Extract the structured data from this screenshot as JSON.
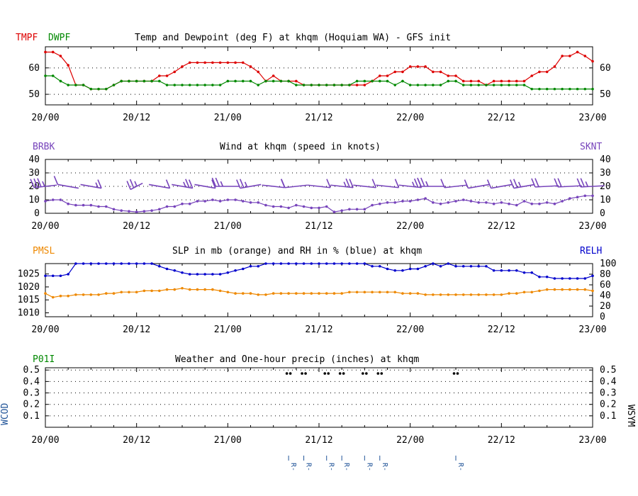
{
  "colors": {
    "tmpf": "#dd0000",
    "dwpf": "#008800",
    "wind": "#7744bb",
    "pmsl": "#ee8800",
    "relh": "#0000cc",
    "precip": "#008800",
    "wcod": "#225599",
    "axis": "#000000"
  },
  "x_labels": [
    "20/00",
    "20/12",
    "21/00",
    "21/12",
    "22/00",
    "22/12",
    "23/00"
  ],
  "chart_data": [
    {
      "type": "line",
      "name": "temp-panel",
      "title": "Temp and Dewpoint (deg F) at khqm  (Hoquiam WA) - GFS init",
      "left_labels": [
        "TMPF",
        "DWPF"
      ],
      "x_range_hours": [
        0,
        72
      ],
      "ylim": [
        46,
        68
      ],
      "yticks": [
        50,
        60
      ],
      "x_hours": [
        0,
        1,
        2,
        3,
        4,
        5,
        6,
        7,
        8,
        9,
        10,
        11,
        12,
        13,
        14,
        15,
        16,
        17,
        18,
        19,
        20,
        21,
        22,
        23,
        24,
        25,
        26,
        27,
        28,
        29,
        30,
        31,
        32,
        33,
        34,
        35,
        36,
        37,
        38,
        39,
        40,
        41,
        42,
        43,
        44,
        45,
        46,
        47,
        48,
        49,
        50,
        51,
        52,
        53,
        54,
        55,
        56,
        57,
        58,
        59,
        60,
        61,
        62,
        63,
        64,
        65,
        66,
        67,
        68,
        69,
        70,
        71,
        72
      ],
      "series": [
        {
          "name": "TMPF",
          "values": [
            66,
            66,
            64.5,
            61,
            53.5,
            53.5,
            52,
            52,
            52,
            53.5,
            55,
            55,
            55,
            55,
            55,
            57,
            57,
            58.5,
            60.5,
            62,
            62,
            62,
            62,
            62,
            62,
            62,
            62,
            60.5,
            58.5,
            55,
            57,
            55,
            55,
            55,
            53.5,
            53.5,
            53.5,
            53.5,
            53.5,
            53.5,
            53.5,
            53.5,
            53.5,
            55,
            57,
            57,
            58.5,
            58.5,
            60.5,
            60.5,
            60.5,
            58.5,
            58.5,
            57,
            57,
            55,
            55,
            55,
            53.5,
            55,
            55,
            55,
            55,
            55,
            57,
            58.5,
            58.5,
            60.5,
            64.5,
            64.5,
            66,
            64.5,
            62.5
          ]
        },
        {
          "name": "DWPF",
          "values": [
            57,
            57,
            55,
            53.5,
            53.5,
            53.5,
            52,
            52,
            52,
            53.5,
            55,
            55,
            55,
            55,
            55,
            55,
            53.5,
            53.5,
            53.5,
            53.5,
            53.5,
            53.5,
            53.5,
            53.5,
            55,
            55,
            55,
            55,
            53.5,
            55,
            55,
            55,
            55,
            53.5,
            53.5,
            53.5,
            53.5,
            53.5,
            53.5,
            53.5,
            53.5,
            55,
            55,
            55,
            55,
            55,
            53.5,
            55,
            53.5,
            53.5,
            53.5,
            53.5,
            53.5,
            55,
            55,
            53.5,
            53.5,
            53.5,
            53.5,
            53.5,
            53.5,
            53.5,
            53.5,
            53.5,
            52,
            52,
            52,
            52,
            52,
            52,
            52,
            52,
            52
          ]
        }
      ]
    },
    {
      "type": "line",
      "name": "wind-panel",
      "title": "Wind at  khqm  (speed in knots)",
      "left_label": "BRBK",
      "right_label": "SKNT",
      "x_range_hours": [
        0,
        72
      ],
      "ylim": [
        0,
        40
      ],
      "yticks": [
        0,
        10,
        20,
        30,
        40
      ],
      "x_hours": [
        0,
        1,
        2,
        3,
        4,
        5,
        6,
        7,
        8,
        9,
        10,
        11,
        12,
        13,
        14,
        15,
        16,
        17,
        18,
        19,
        20,
        21,
        22,
        23,
        24,
        25,
        26,
        27,
        28,
        29,
        30,
        31,
        32,
        33,
        34,
        35,
        36,
        37,
        38,
        39,
        40,
        41,
        42,
        43,
        44,
        45,
        46,
        47,
        48,
        49,
        50,
        51,
        52,
        53,
        54,
        55,
        56,
        57,
        58,
        59,
        60,
        61,
        62,
        63,
        64,
        65,
        66,
        67,
        68,
        69,
        70,
        71,
        72
      ],
      "series": [
        {
          "name": "SKNT",
          "values": [
            9,
            10,
            10,
            7,
            6,
            6,
            6,
            5,
            5,
            3,
            2,
            1.5,
            1,
            1.5,
            2,
            3,
            5,
            5,
            7,
            7,
            9,
            9,
            10,
            9,
            10,
            10,
            9,
            8,
            8,
            6,
            5,
            5,
            4,
            6,
            5,
            4,
            4,
            5,
            1,
            2,
            3,
            3,
            3,
            6,
            7,
            8,
            8,
            9,
            9,
            10,
            11,
            8,
            7,
            8,
            9,
            10,
            9,
            8,
            8,
            7,
            8,
            7,
            6,
            9,
            7,
            7,
            8,
            7,
            9,
            11,
            12,
            13,
            13
          ]
        }
      ],
      "barbs": [
        {
          "hour": 0,
          "dir": 290,
          "speed": 25
        },
        {
          "hour": 3,
          "dir": 240,
          "speed": 10
        },
        {
          "hour": 6,
          "dir": 60,
          "speed": 5
        },
        {
          "hour": 12,
          "dir": 330,
          "speed": 15
        },
        {
          "hour": 15,
          "dir": 60,
          "speed": 10
        },
        {
          "hour": 18,
          "dir": 60,
          "speed": 15
        },
        {
          "hour": 21,
          "dir": 60,
          "speed": 10
        },
        {
          "hour": 24,
          "dir": 270,
          "speed": 15
        },
        {
          "hour": 27,
          "dir": 300,
          "speed": 15
        },
        {
          "hour": 30,
          "dir": 70,
          "speed": 10
        },
        {
          "hour": 33,
          "dir": 290,
          "speed": 10
        },
        {
          "hour": 36,
          "dir": 70,
          "speed": 10
        },
        {
          "hour": 39,
          "dir": 70,
          "speed": 15
        },
        {
          "hour": 42,
          "dir": 70,
          "speed": 10
        },
        {
          "hour": 45,
          "dir": 70,
          "speed": 10
        },
        {
          "hour": 48,
          "dir": 70,
          "speed": 15
        },
        {
          "hour": 51,
          "dir": 270,
          "speed": 15
        },
        {
          "hour": 54,
          "dir": 290,
          "speed": 10
        },
        {
          "hour": 57,
          "dir": 300,
          "speed": 10
        },
        {
          "hour": 60,
          "dir": 300,
          "speed": 10
        },
        {
          "hour": 63,
          "dir": 300,
          "speed": 15
        },
        {
          "hour": 66,
          "dir": 280,
          "speed": 20
        },
        {
          "hour": 69,
          "dir": 280,
          "speed": 20
        },
        {
          "hour": 72,
          "dir": 280,
          "speed": 15
        }
      ]
    },
    {
      "type": "line",
      "name": "slp-panel",
      "title": "SLP in mb (orange) and RH in % (blue) at  khqm",
      "left_label": "PMSL",
      "right_label": "RELH",
      "x_range_hours": [
        0,
        72
      ],
      "ylim_left": [
        1008.5,
        1029
      ],
      "yticks_left": [
        1010,
        1015,
        1020,
        1025
      ],
      "ylim_right": [
        0,
        100
      ],
      "yticks_right": [
        0,
        20,
        40,
        60,
        80,
        100
      ],
      "x_hours": [
        0,
        1,
        2,
        3,
        4,
        5,
        6,
        7,
        8,
        9,
        10,
        11,
        12,
        13,
        14,
        15,
        16,
        17,
        18,
        19,
        20,
        21,
        22,
        23,
        24,
        25,
        26,
        27,
        28,
        29,
        30,
        31,
        32,
        33,
        34,
        35,
        36,
        37,
        38,
        39,
        40,
        41,
        42,
        43,
        44,
        45,
        46,
        47,
        48,
        49,
        50,
        51,
        52,
        53,
        54,
        55,
        56,
        57,
        58,
        59,
        60,
        61,
        62,
        63,
        64,
        65,
        66,
        67,
        68,
        69,
        70,
        71,
        72
      ],
      "series": [
        {
          "name": "PMSL",
          "axis": "left",
          "values": [
            1017.5,
            1016,
            1016.5,
            1016.5,
            1017,
            1017,
            1017,
            1017,
            1017.5,
            1017.5,
            1018,
            1018,
            1018,
            1018.5,
            1018.5,
            1018.5,
            1019,
            1019,
            1019.5,
            1019,
            1019,
            1019,
            1019,
            1018.5,
            1018,
            1017.5,
            1017.5,
            1017.5,
            1017,
            1017,
            1017.5,
            1017.5,
            1017.5,
            1017.5,
            1017.5,
            1017.5,
            1017.5,
            1017.5,
            1017.5,
            1017.5,
            1018,
            1018,
            1018,
            1018,
            1018,
            1018,
            1018,
            1017.5,
            1017.5,
            1017.5,
            1017,
            1017,
            1017,
            1017,
            1017,
            1017,
            1017,
            1017,
            1017,
            1017,
            1017,
            1017.5,
            1017.5,
            1018,
            1018,
            1018.5,
            1019,
            1019,
            1019,
            1019,
            1019,
            1019,
            1018.5
          ]
        },
        {
          "name": "RELH",
          "axis": "right",
          "values": [
            77,
            77,
            77,
            80,
            100,
            100,
            100,
            100,
            100,
            100,
            100,
            100,
            100,
            100,
            100,
            95,
            90,
            87,
            83,
            80,
            80,
            80,
            80,
            80,
            83,
            87,
            90,
            95,
            95,
            100,
            100,
            100,
            100,
            100,
            100,
            100,
            100,
            100,
            100,
            100,
            100,
            100,
            100,
            95,
            95,
            90,
            87,
            87,
            90,
            90,
            95,
            100,
            95,
            100,
            95,
            95,
            95,
            95,
            95,
            87,
            87,
            87,
            87,
            83,
            83,
            75,
            75,
            72,
            72,
            72,
            72,
            72,
            77
          ]
        }
      ]
    },
    {
      "type": "scatter",
      "name": "precip-panel",
      "title": "Weather and One-hour precip (inches) at  khqm",
      "left_label": "P01I",
      "left_vertical_label": "WCOD",
      "right_vertical_label": "WSYM",
      "x_range_hours": [
        0,
        72
      ],
      "ylim": [
        0,
        0.52
      ],
      "yticks": [
        0.1,
        0.2,
        0.3,
        0.4,
        0.5
      ],
      "symbol_hours": [
        32,
        34,
        37,
        39,
        42,
        44,
        54
      ],
      "wcod_hours": [
        32,
        34,
        37,
        39,
        42,
        44,
        54
      ],
      "wcod_text": "R-"
    }
  ]
}
